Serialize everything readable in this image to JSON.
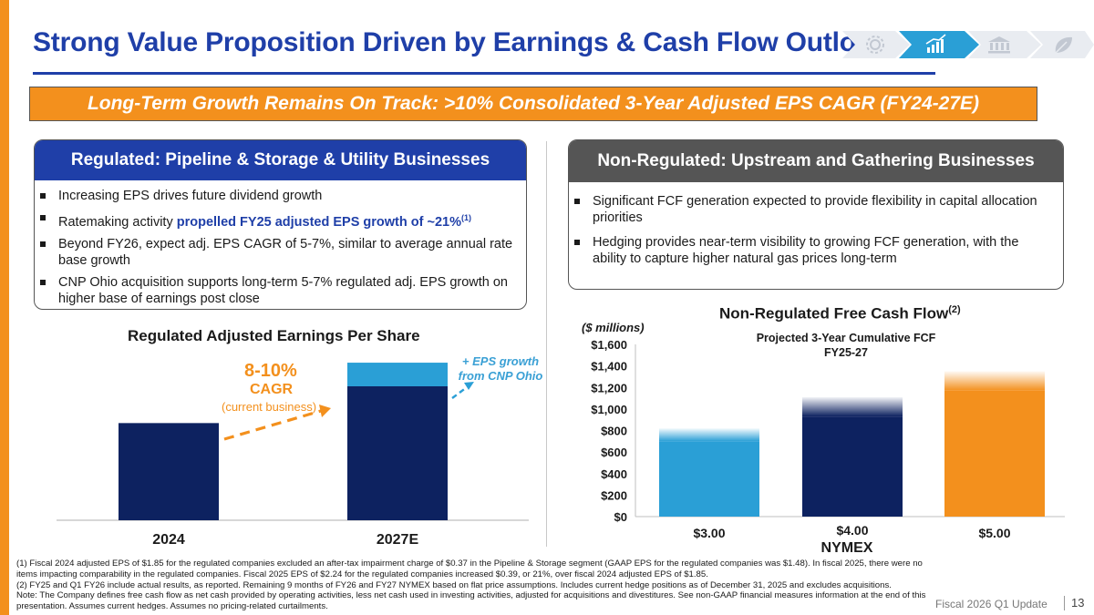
{
  "header": {
    "title": "Strong Value Proposition Driven by Earnings & Cash Flow Outlook",
    "nav_icons": [
      "gear-icon",
      "growth-chart-icon",
      "bank-icon",
      "leaf-icon"
    ],
    "active_nav_index": 1
  },
  "banner": {
    "text": "Long-Term Growth Remains On Track: >10% Consolidated 3-Year Adjusted EPS CAGR (FY24-27E)"
  },
  "regulated": {
    "heading": "Regulated: Pipeline & Storage & Utility Businesses",
    "bullets": [
      {
        "text": "Increasing EPS drives future dividend growth"
      },
      {
        "pre": "Ratemaking activity ",
        "bold": "propelled FY25 adjusted EPS growth of ~21%",
        "sup": "(1)"
      },
      {
        "text": "Beyond FY26, expect adj. EPS CAGR of 5-7%, similar to average annual rate base growth"
      },
      {
        "text": "CNP Ohio acquisition supports long-term 5-7% regulated adj. EPS growth on higher base of earnings post close"
      }
    ]
  },
  "non_regulated": {
    "heading": "Non-Regulated: Upstream and Gathering Businesses",
    "bullets": [
      "Significant FCF generation expected to provide flexibility in capital allocation priorities",
      "Hedging provides near-term visibility to growing FCF generation, with the ability to capture higher natural gas prices long-term"
    ]
  },
  "eps_annotations": {
    "cagr_value": "8-10%",
    "cagr_label": "CAGR",
    "cagr_sub": "(current business)",
    "cnp_note": "+ EPS growth from CNP Ohio"
  },
  "fcf_annotations": {
    "title_main": "Non-Regulated Free Cash Flow",
    "title_sup": "(2)",
    "unit_label": "($ millions)",
    "sub_title_line1": "Projected 3-Year Cumulative FCF",
    "sub_title_line2": "FY25-27"
  },
  "colors": {
    "brand_blue": "#1f3fa8",
    "navy": "#0d2260",
    "orange": "#f3901d",
    "light_blue": "#2a9fd6",
    "gray_header": "#555555"
  },
  "chart_data": [
    {
      "type": "bar",
      "title": "Regulated Adjusted Earnings Per Share",
      "categories": [
        "2024",
        "2027E"
      ],
      "series": [
        {
          "name": "Current business",
          "values": [
            1.85,
            2.55
          ]
        },
        {
          "name": "+ EPS growth from CNP Ohio",
          "values": [
            0,
            0.45
          ]
        }
      ],
      "stacked": true,
      "xlabel": "",
      "ylabel": "",
      "ylim": [
        0,
        3.4
      ],
      "grid": false
    },
    {
      "type": "bar",
      "title": "Non-Regulated Free Cash Flow(2)",
      "subtitle": "Projected 3-Year Cumulative FCF FY25-27",
      "categories": [
        "$3.00",
        "$4.00",
        "$5.00"
      ],
      "values": [
        700,
        930,
        1170
      ],
      "range_high": [
        820,
        1110,
        1350
      ],
      "xlabel": "NYMEX",
      "ylabel": "($ millions)",
      "yticks": [
        "$0",
        "$200",
        "$400",
        "$600",
        "$800",
        "$1,000",
        "$1,200",
        "$1,400",
        "$1,600"
      ],
      "ylim": [
        0,
        1600
      ],
      "grid": false
    }
  ],
  "footnotes": [
    "(1) Fiscal 2024 adjusted EPS of $1.85 for the regulated companies excluded an after-tax impairment charge of $0.37 in the Pipeline & Storage segment (GAAP EPS for the regulated companies was $1.48).  In fiscal 2025, there were no items impacting comparability in the regulated companies.  Fiscal 2025 EPS of $2.24 for the regulated companies increased $0.39, or 21%, over fiscal 2024 adjusted EPS of $1.85.",
    "(2)  FY25 and Q1 FY26 include actual results, as reported. Remaining 9 months of FY26 and FY27 NYMEX based on flat price assumptions. Includes current hedge positions as of December 31, 2025 and excludes acquisitions.",
    "Note: The Company defines free cash flow as net cash provided by operating activities, less net cash used in investing activities, adjusted for acquisitions and divestitures. See non-GAAP financial measures information at the end of this presentation. Assumes current hedges. Assumes no pricing-related curtailments."
  ],
  "footer": {
    "label": "Fiscal 2026 Q1 Update",
    "page": "13"
  }
}
